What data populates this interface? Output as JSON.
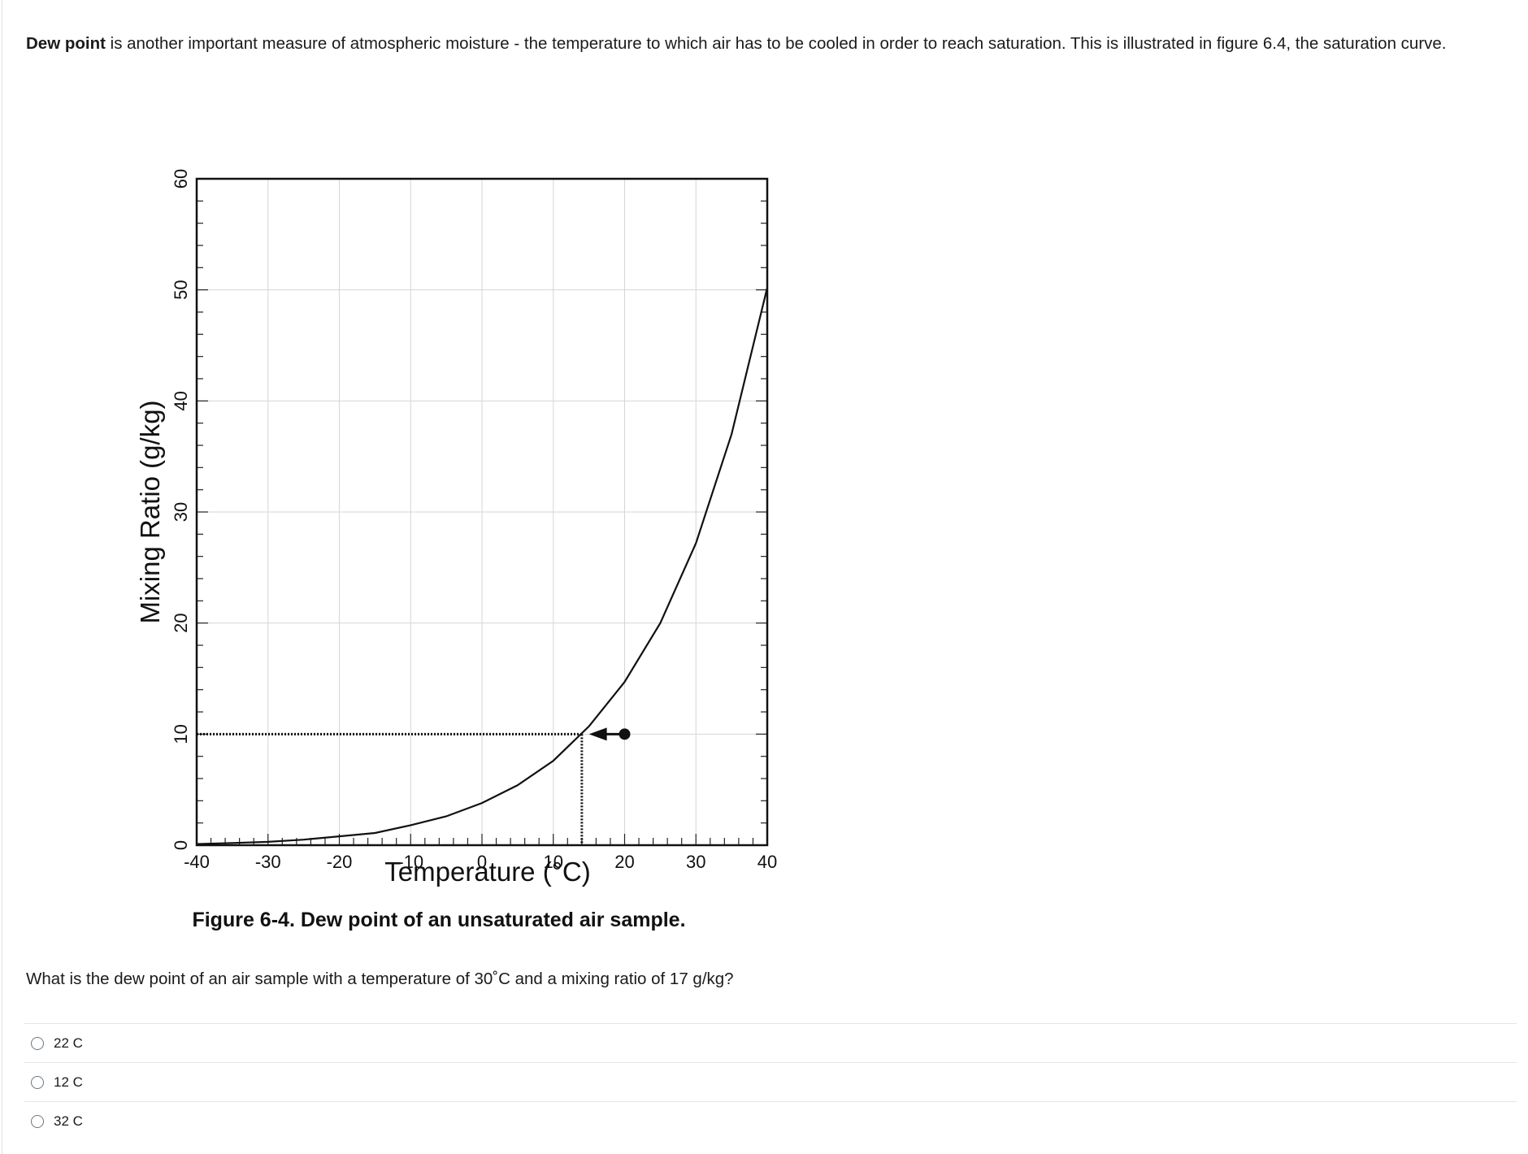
{
  "intro": {
    "bold_term": "Dew point",
    "text": " is another important measure of atmospheric moisture - the temperature to which air has to be cooled in order to reach saturation. This is illustrated in figure 6.4, the saturation curve."
  },
  "figure": {
    "caption": "Figure 6-4. Dew point of an unsaturated air sample."
  },
  "chart_data": {
    "type": "line",
    "title": "",
    "xlabel": "Temperature (°C)",
    "ylabel": "Mixing Ratio (g/kg)",
    "xlim": [
      -40,
      40
    ],
    "ylim": [
      0,
      60
    ],
    "x_ticks": [
      -40,
      -30,
      -20,
      -10,
      0,
      10,
      20,
      30,
      40
    ],
    "y_ticks": [
      0,
      10,
      20,
      30,
      40,
      50,
      60
    ],
    "grid": true,
    "series": [
      {
        "x": [
          -40,
          -35,
          -30,
          -25,
          -20,
          -15,
          -10,
          -5,
          0,
          5,
          10,
          15,
          20,
          25,
          30,
          35,
          40
        ],
        "y": [
          0.1,
          0.2,
          0.3,
          0.5,
          0.8,
          1.1,
          1.8,
          2.6,
          3.8,
          5.4,
          7.6,
          10.7,
          14.7,
          20.0,
          27.2,
          37.0,
          50.2
        ]
      }
    ],
    "annotation": {
      "point": {
        "x": 20,
        "y": 10
      },
      "arrow_to": {
        "x": 15,
        "y": 10
      },
      "dew_point_x": 14
    }
  },
  "question": {
    "text": "What is the dew point of an air sample with a temperature of 30˚C and a mixing ratio of 17 g/kg?"
  },
  "answers": [
    {
      "label": "22 C"
    },
    {
      "label": "12 C"
    },
    {
      "label": "32 C"
    }
  ]
}
